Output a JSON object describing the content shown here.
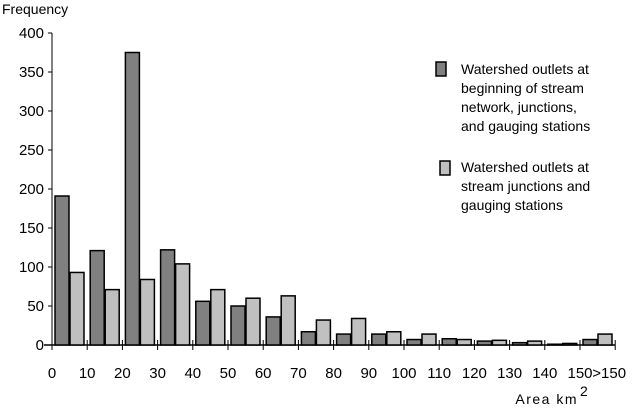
{
  "chart_data": {
    "type": "bar",
    "title": "",
    "ylabel": "Frequency",
    "xlabel": "Area km",
    "xlabel_sup": "2",
    "ylim": [
      0,
      400
    ],
    "yticks": [
      "0",
      "50",
      "100",
      "150",
      "200",
      "250",
      "300",
      "350",
      "400"
    ],
    "xtick_labels": [
      "0",
      "10",
      "20",
      "30",
      "40",
      "50",
      "60",
      "70",
      "80",
      "90",
      "100",
      "110",
      "120",
      "130",
      "140",
      "150",
      ">150"
    ],
    "categories": [
      "0-10",
      "10-20",
      "20-30",
      "30-40",
      "40-50",
      "50-60",
      "60-70",
      "70-80",
      "80-90",
      "90-100",
      "100-110",
      "110-120",
      "120-130",
      "130-140",
      "140-150",
      ">150"
    ],
    "series": [
      {
        "name": "Watershed outlets at beginning of stream network, junctions, and gauging stations",
        "legend_lines": [
          "Watershed outlets at",
          "beginning of stream",
          "network, junctions,",
          "and gauging stations"
        ],
        "color": "#808080",
        "values": [
          191,
          121,
          375,
          122,
          56,
          50,
          36,
          17,
          14,
          14,
          7,
          8,
          5,
          3,
          1,
          7
        ]
      },
      {
        "name": "Watershed outlets at stream junctions and gauging stations",
        "legend_lines": [
          "Watershed outlets at",
          "stream junctions and",
          "gauging stations"
        ],
        "color": "#c0c0c0",
        "values": [
          93,
          71,
          84,
          104,
          71,
          60,
          63,
          32,
          34,
          17,
          14,
          7,
          6,
          5,
          2,
          14
        ]
      }
    ],
    "grid": false,
    "legend_position": "top-right"
  }
}
